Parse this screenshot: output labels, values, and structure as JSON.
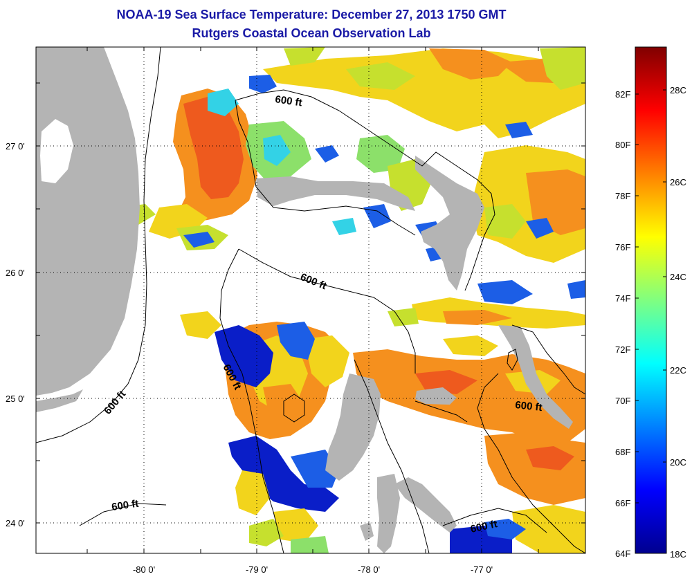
{
  "title": {
    "line1": "NOAA-19 Sea Surface Temperature:  December 27, 2013 1750 GMT",
    "line2": "Rutgers Coastal Ocean Observation Lab"
  },
  "map": {
    "lat_labels": [
      "27 0'",
      "26 0'",
      "25 0'",
      "24 0'"
    ],
    "lon_labels": [
      "-80 0'",
      "-79 0'",
      "-78 0'",
      "-77 0'"
    ],
    "contour_labels": [
      "600 ft",
      "600 ft",
      "600 ft",
      "600 ft",
      "600 ft",
      "600 ft",
      "600 ft"
    ],
    "colors": {
      "land": "#b4b4b4",
      "cloud": "#ffffff",
      "warm_orange": "#f5901e",
      "red_orange": "#ee5a1e",
      "yellow": "#f2d41c",
      "yellow_green": "#c6e02e",
      "light_green": "#8ce06a",
      "cyan": "#33d2e6",
      "blue": "#1c5ee6",
      "dark_blue": "#0a1ec8"
    }
  },
  "colorbar": {
    "fahrenheit_labels": [
      "82F",
      "80F",
      "78F",
      "76F",
      "74F",
      "72F",
      "70F",
      "68F",
      "66F",
      "64F"
    ],
    "celsius_labels": [
      "28C",
      "26C",
      "24C",
      "22C",
      "20C",
      "18C"
    ],
    "range_c": [
      18,
      29.5
    ],
    "colors": [
      "#00008f",
      "#0000ff",
      "#0080ff",
      "#00ffff",
      "#80ff80",
      "#ffff00",
      "#ff8000",
      "#ff0000",
      "#800000"
    ]
  }
}
